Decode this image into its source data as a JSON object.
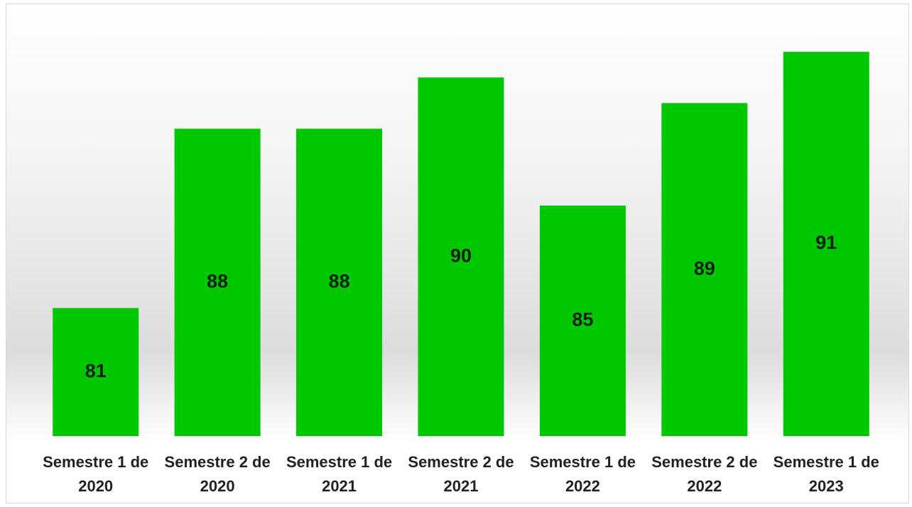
{
  "chart_data": {
    "type": "bar",
    "categories": [
      "Semestre 1 de 2020",
      "Semestre 2 de 2020",
      "Semestre 1 de 2021",
      "Semestre 2 de 2021",
      "Semestre 1 de 2022",
      "Semestre 2 de 2022",
      "Semestre 1 de 2023"
    ],
    "values": [
      81,
      88,
      88,
      90,
      85,
      89,
      91
    ],
    "color": "#00c800",
    "ylim": [
      76,
      92
    ]
  }
}
